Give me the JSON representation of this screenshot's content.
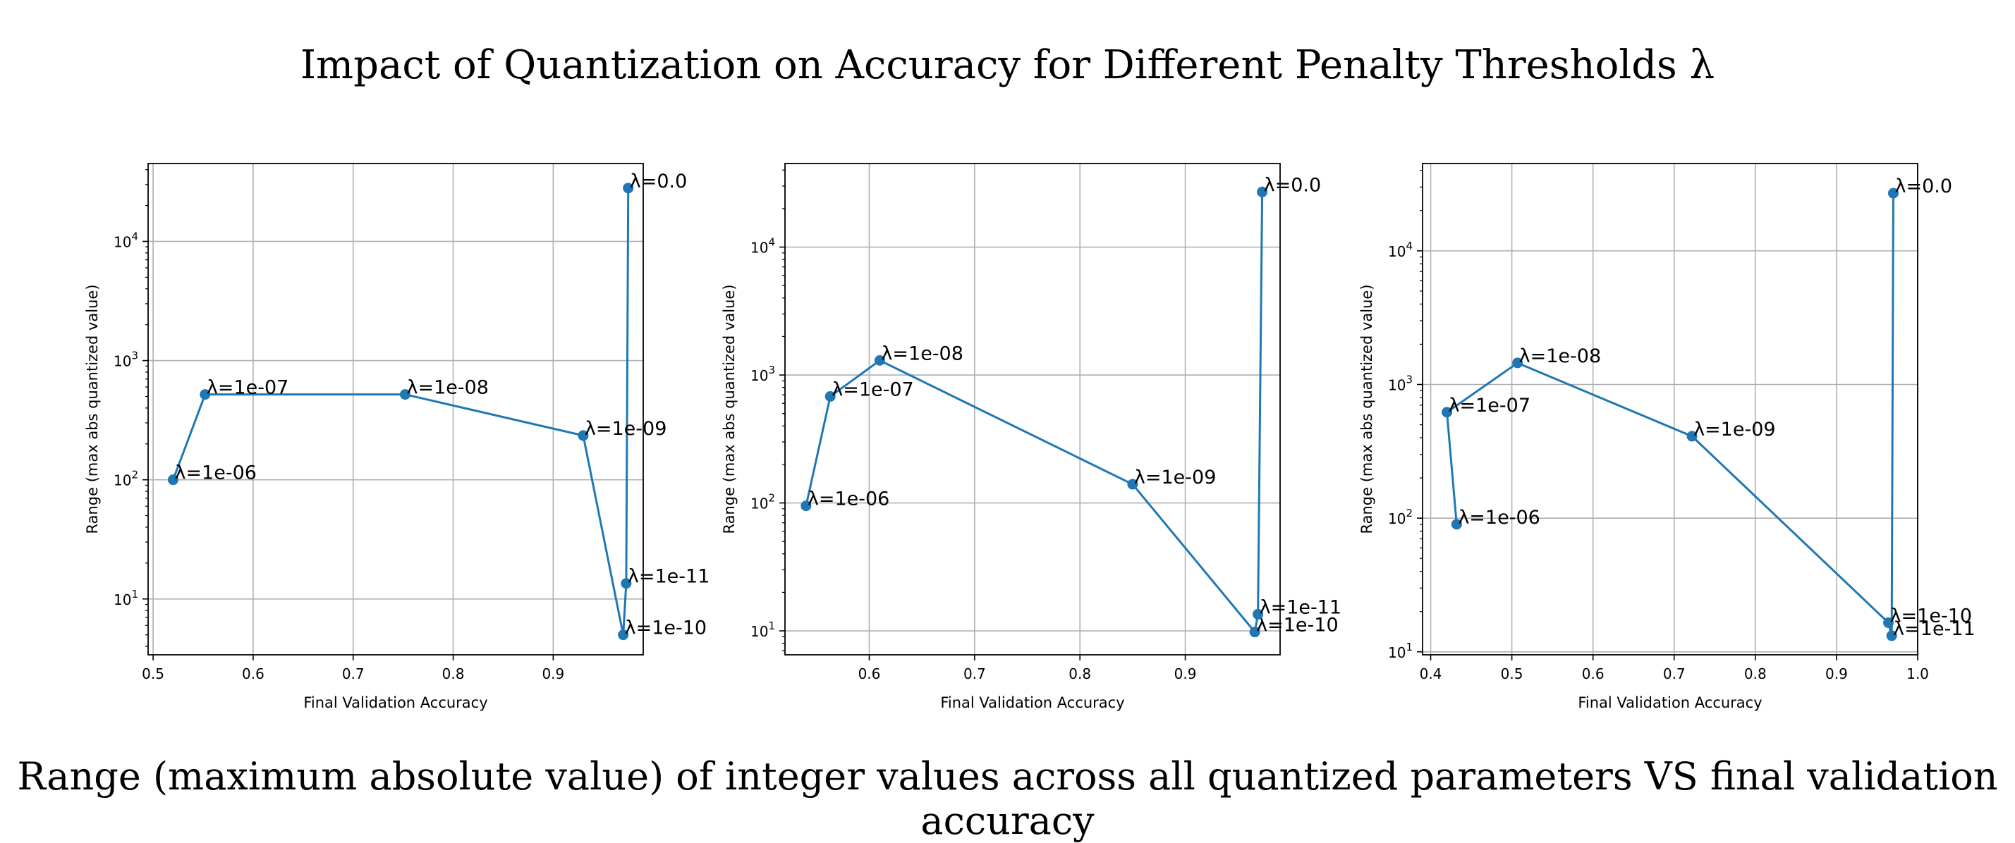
{
  "suptitle": "Impact of Quantization on Accuracy for Different Penalty Thresholds λ",
  "caption": "Range (maximum absolute value) of integer values across all quantized parameters VS final validation accuracy",
  "style": {
    "line_color": "#1f77b4",
    "grid_color": "#b0b0b0"
  },
  "chart_data": [
    {
      "type": "line",
      "xlabel": "Final Validation Accuracy",
      "ylabel": "Range  (max abs quantized value)",
      "yscale": "log",
      "grid": true,
      "xlim": [
        0.495,
        0.99
      ],
      "ylim": [
        3.4,
        45000
      ],
      "xticks": [
        0.5,
        0.6,
        0.7,
        0.8,
        0.9
      ],
      "xtick_labels": [
        "0.5",
        "0.6",
        "0.7",
        "0.8",
        "0.9"
      ],
      "yticks": [
        10,
        100,
        1000,
        10000
      ],
      "series": [
        {
          "points": [
            {
              "label": "λ=1e-06",
              "x": 0.52,
              "y": 100
            },
            {
              "label": "λ=1e-07",
              "x": 0.552,
              "y": 520
            },
            {
              "label": "λ=1e-08",
              "x": 0.752,
              "y": 520
            },
            {
              "label": "λ=1e-09",
              "x": 0.93,
              "y": 235
            },
            {
              "label": "λ=1e-10",
              "x": 0.97,
              "y": 5
            },
            {
              "label": "λ=1e-11",
              "x": 0.973,
              "y": 13.5
            },
            {
              "label": "λ=0.0",
              "x": 0.975,
              "y": 28000
            }
          ]
        }
      ]
    },
    {
      "type": "line",
      "xlabel": "Final Validation Accuracy",
      "ylabel": "Range  (max abs quantized value)",
      "yscale": "log",
      "grid": true,
      "xlim": [
        0.52,
        0.99
      ],
      "ylim": [
        6.5,
        45000
      ],
      "xticks": [
        0.6,
        0.7,
        0.8,
        0.9
      ],
      "xtick_labels": [
        "0.6",
        "0.7",
        "0.8",
        "0.9"
      ],
      "yticks": [
        10,
        100,
        1000,
        10000
      ],
      "series": [
        {
          "points": [
            {
              "label": "λ=1e-06",
              "x": 0.54,
              "y": 95
            },
            {
              "label": "λ=1e-07",
              "x": 0.563,
              "y": 680
            },
            {
              "label": "λ=1e-08",
              "x": 0.61,
              "y": 1300
            },
            {
              "label": "λ=1e-09",
              "x": 0.85,
              "y": 140
            },
            {
              "label": "λ=1e-10",
              "x": 0.966,
              "y": 9.8
            },
            {
              "label": "λ=1e-11",
              "x": 0.969,
              "y": 13.5
            },
            {
              "label": "λ=0.0",
              "x": 0.973,
              "y": 27000
            }
          ]
        }
      ]
    },
    {
      "type": "line",
      "xlabel": "Final Validation Accuracy",
      "ylabel": "Range  (max abs quantized value)",
      "yscale": "log",
      "grid": true,
      "xlim": [
        0.39,
        1.0
      ],
      "ylim": [
        9.5,
        45000
      ],
      "xticks": [
        0.4,
        0.5,
        0.6,
        0.7,
        0.8,
        0.9,
        1.0
      ],
      "xtick_labels": [
        "0.4",
        "0.5",
        "0.6",
        "0.7",
        "0.8",
        "0.9",
        "1.0"
      ],
      "yticks": [
        10,
        100,
        1000,
        10000
      ],
      "series": [
        {
          "points": [
            {
              "label": "λ=1e-06",
              "x": 0.432,
              "y": 90
            },
            {
              "label": "λ=1e-07",
              "x": 0.42,
              "y": 620
            },
            {
              "label": "λ=1e-08",
              "x": 0.507,
              "y": 1450
            },
            {
              "label": "λ=1e-09",
              "x": 0.722,
              "y": 410
            },
            {
              "label": "λ=1e-10",
              "x": 0.964,
              "y": 16.5
            },
            {
              "label": "λ=1e-11",
              "x": 0.968,
              "y": 13.2
            },
            {
              "label": "λ=0.0",
              "x": 0.97,
              "y": 27000
            }
          ]
        }
      ]
    }
  ]
}
